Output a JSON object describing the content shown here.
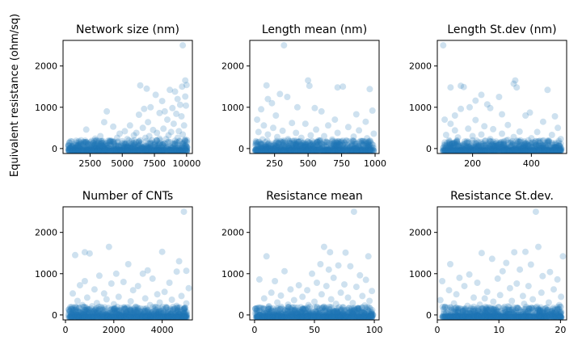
{
  "figure": {
    "ylabel": "Equivalent resistance (ohm/sq)"
  },
  "chart_data": [
    {
      "type": "scatter",
      "title": "Network size (nm)",
      "xlim": [
        400,
        10450
      ],
      "ylim": [
        -120,
        2620
      ],
      "xticks": [
        2500,
        5000,
        7500,
        10000
      ],
      "xticklabels": [
        "2500",
        "5000",
        "7500",
        "10000"
      ],
      "yticks": [
        0,
        1000,
        2000
      ],
      "yticklabels": [
        "0",
        "1000",
        "2000"
      ],
      "grid": false,
      "points": [
        [
          9700,
          2500
        ],
        [
          9900,
          1650
        ],
        [
          9650,
          1500
        ],
        [
          10000,
          1540
        ],
        [
          6400,
          1530
        ],
        [
          6900,
          1450
        ],
        [
          8700,
          1420
        ],
        [
          9100,
          1380
        ],
        [
          7600,
          1300
        ],
        [
          9900,
          1260
        ],
        [
          9300,
          1200
        ],
        [
          8100,
          1150
        ],
        [
          9500,
          1060
        ],
        [
          7200,
          1000
        ],
        [
          9950,
          1040
        ],
        [
          8900,
          980
        ],
        [
          6700,
          960
        ],
        [
          8300,
          900
        ],
        [
          3800,
          900
        ],
        [
          7900,
          860
        ],
        [
          9200,
          840
        ],
        [
          6300,
          820
        ],
        [
          9600,
          780
        ],
        [
          3600,
          640
        ],
        [
          7000,
          640
        ],
        [
          8500,
          700
        ],
        [
          5600,
          560
        ],
        [
          4300,
          530
        ],
        [
          9000,
          600
        ],
        [
          9800,
          560
        ],
        [
          6600,
          500
        ],
        [
          5200,
          420
        ],
        [
          7400,
          450
        ],
        [
          8200,
          480
        ],
        [
          2200,
          460
        ],
        [
          9400,
          420
        ],
        [
          6100,
          380
        ],
        [
          4800,
          360
        ],
        [
          7700,
          380
        ],
        [
          8800,
          400
        ],
        [
          3300,
          300
        ],
        [
          5900,
          320
        ],
        [
          9700,
          340
        ],
        [
          7100,
          300
        ],
        [
          8600,
          320
        ],
        [
          4600,
          260
        ],
        [
          6800,
          260
        ],
        [
          9300,
          260
        ],
        [
          5400,
          230
        ],
        [
          2900,
          240
        ],
        [
          7900,
          240
        ],
        [
          8400,
          230
        ],
        [
          9900,
          220
        ],
        [
          1800,
          200
        ],
        [
          6400,
          200
        ],
        [
          3900,
          190
        ],
        [
          7300,
          200
        ],
        [
          9100,
          190
        ],
        [
          5000,
          180
        ],
        [
          4100,
          170
        ]
      ]
    },
    {
      "type": "scatter",
      "title": "Length mean (nm)",
      "xlim": [
        65,
        1030
      ],
      "ylim": [
        -120,
        2620
      ],
      "xticks": [
        250,
        500,
        750,
        1000
      ],
      "xticklabels": [
        "250",
        "500",
        "750",
        "1000"
      ],
      "yticks": [
        0,
        1000,
        2000
      ],
      "yticklabels": [
        "0",
        "1000",
        "2000"
      ],
      "grid": false,
      "points": [
        [
          320,
          2500
        ],
        [
          500,
          1650
        ],
        [
          510,
          1520
        ],
        [
          190,
          1530
        ],
        [
          760,
          1500
        ],
        [
          720,
          1480
        ],
        [
          960,
          1440
        ],
        [
          290,
          1320
        ],
        [
          345,
          1250
        ],
        [
          200,
          1200
        ],
        [
          230,
          1100
        ],
        [
          420,
          1000
        ],
        [
          550,
          980
        ],
        [
          980,
          920
        ],
        [
          150,
          950
        ],
        [
          600,
          900
        ],
        [
          860,
          830
        ],
        [
          260,
          800
        ],
        [
          120,
          700
        ],
        [
          700,
          700
        ],
        [
          930,
          650
        ],
        [
          380,
          620
        ],
        [
          480,
          600
        ],
        [
          170,
          560
        ],
        [
          650,
          560
        ],
        [
          240,
          500
        ],
        [
          800,
          520
        ],
        [
          560,
          460
        ],
        [
          310,
          430
        ],
        [
          880,
          440
        ],
        [
          130,
          400
        ],
        [
          410,
          380
        ],
        [
          720,
          380
        ],
        [
          990,
          360
        ],
        [
          200,
          340
        ],
        [
          520,
          320
        ],
        [
          620,
          300
        ],
        [
          270,
          280
        ],
        [
          840,
          290
        ],
        [
          450,
          260
        ],
        [
          940,
          250
        ],
        [
          350,
          230
        ],
        [
          160,
          220
        ],
        [
          680,
          220
        ],
        [
          590,
          200
        ],
        [
          760,
          190
        ],
        [
          110,
          180
        ],
        [
          900,
          180
        ],
        [
          430,
          170
        ],
        [
          300,
          160
        ]
      ]
    },
    {
      "type": "scatter",
      "title": "Length St.dev (nm)",
      "xlim": [
        80,
        520
      ],
      "ylim": [
        -120,
        2620
      ],
      "xticks": [
        200,
        400
      ],
      "xticklabels": [
        "200",
        "400"
      ],
      "yticks": [
        0,
        1000,
        2000
      ],
      "yticklabels": [
        "0",
        "1000",
        "2000"
      ],
      "grid": false,
      "points": [
        [
          100,
          2500
        ],
        [
          345,
          1650
        ],
        [
          340,
          1570
        ],
        [
          350,
          1480
        ],
        [
          160,
          1520
        ],
        [
          170,
          1490
        ],
        [
          125,
          1480
        ],
        [
          455,
          1420
        ],
        [
          230,
          1300
        ],
        [
          290,
          1250
        ],
        [
          210,
          1160
        ],
        [
          250,
          1070
        ],
        [
          190,
          1000
        ],
        [
          260,
          980
        ],
        [
          160,
          960
        ],
        [
          395,
          870
        ],
        [
          300,
          830
        ],
        [
          140,
          800
        ],
        [
          480,
          780
        ],
        [
          380,
          800
        ],
        [
          105,
          700
        ],
        [
          210,
          690
        ],
        [
          440,
          650
        ],
        [
          125,
          600
        ],
        [
          320,
          570
        ],
        [
          240,
          540
        ],
        [
          490,
          500
        ],
        [
          185,
          480
        ],
        [
          270,
          470
        ],
        [
          140,
          440
        ],
        [
          360,
          410
        ],
        [
          420,
          400
        ],
        [
          300,
          360
        ],
        [
          230,
          340
        ],
        [
          110,
          330
        ],
        [
          470,
          330
        ],
        [
          200,
          300
        ],
        [
          340,
          280
        ],
        [
          150,
          270
        ],
        [
          400,
          250
        ],
        [
          260,
          230
        ],
        [
          500,
          230
        ],
        [
          120,
          200
        ],
        [
          320,
          210
        ],
        [
          180,
          180
        ],
        [
          430,
          190
        ],
        [
          280,
          170
        ],
        [
          360,
          160
        ],
        [
          220,
          150
        ],
        [
          460,
          160
        ]
      ]
    },
    {
      "type": "scatter",
      "title": "Number of CNTs",
      "xlim": [
        -100,
        5250
      ],
      "ylim": [
        -120,
        2620
      ],
      "xticks": [
        0,
        2000,
        4000
      ],
      "xticklabels": [
        "0",
        "2000",
        "4000"
      ],
      "yticks": [
        0,
        1000,
        2000
      ],
      "yticklabels": [
        "0",
        "1000",
        "2000"
      ],
      "grid": false,
      "points": [
        [
          4900,
          2500
        ],
        [
          1800,
          1650
        ],
        [
          800,
          1520
        ],
        [
          1000,
          1490
        ],
        [
          400,
          1450
        ],
        [
          4000,
          1530
        ],
        [
          4700,
          1300
        ],
        [
          2600,
          1230
        ],
        [
          3400,
          1080
        ],
        [
          5000,
          1070
        ],
        [
          4600,
          1050
        ],
        [
          2100,
          1000
        ],
        [
          3200,
          1000
        ],
        [
          1400,
          950
        ],
        [
          3600,
          880
        ],
        [
          800,
          820
        ],
        [
          2400,
          800
        ],
        [
          4300,
          780
        ],
        [
          1900,
          760
        ],
        [
          600,
          720
        ],
        [
          3000,
          700
        ],
        [
          5100,
          650
        ],
        [
          1200,
          620
        ],
        [
          2800,
          600
        ],
        [
          4100,
          560
        ],
        [
          300,
          520
        ],
        [
          1600,
          520
        ],
        [
          3800,
          500
        ],
        [
          4800,
          460
        ],
        [
          2200,
          440
        ],
        [
          900,
          420
        ],
        [
          3300,
          400
        ],
        [
          1700,
          380
        ],
        [
          4400,
          370
        ],
        [
          500,
          340
        ],
        [
          2700,
          330
        ],
        [
          3900,
          300
        ],
        [
          1300,
          290
        ],
        [
          5000,
          280
        ],
        [
          2000,
          260
        ],
        [
          700,
          240
        ],
        [
          3500,
          240
        ],
        [
          4600,
          220
        ],
        [
          1100,
          210
        ],
        [
          2900,
          200
        ],
        [
          200,
          190
        ],
        [
          4200,
          180
        ],
        [
          1500,
          170
        ],
        [
          3100,
          160
        ],
        [
          2500,
          150
        ]
      ]
    },
    {
      "type": "scatter",
      "title": "Resistance mean",
      "xlim": [
        -4,
        104
      ],
      "ylim": [
        -120,
        2620
      ],
      "xticks": [
        0,
        50,
        100
      ],
      "xticklabels": [
        "0",
        "50",
        "100"
      ],
      "yticks": [
        0,
        1000,
        2000
      ],
      "yticklabels": [
        "0",
        "1000",
        "2000"
      ],
      "grid": false,
      "points": [
        [
          83,
          2500
        ],
        [
          58,
          1650
        ],
        [
          63,
          1520
        ],
        [
          76,
          1510
        ],
        [
          10,
          1420
        ],
        [
          95,
          1420
        ],
        [
          55,
          1230
        ],
        [
          70,
          1200
        ],
        [
          80,
          1180
        ],
        [
          62,
          1100
        ],
        [
          25,
          1060
        ],
        [
          48,
          1000
        ],
        [
          88,
          960
        ],
        [
          4,
          860
        ],
        [
          66,
          900
        ],
        [
          93,
          850
        ],
        [
          17,
          820
        ],
        [
          52,
          780
        ],
        [
          75,
          740
        ],
        [
          37,
          720
        ],
        [
          60,
          700
        ],
        [
          85,
          680
        ],
        [
          30,
          620
        ],
        [
          44,
          600
        ],
        [
          98,
          580
        ],
        [
          14,
          540
        ],
        [
          72,
          540
        ],
        [
          56,
          500
        ],
        [
          22,
          470
        ],
        [
          90,
          460
        ],
        [
          40,
          440
        ],
        [
          78,
          420
        ],
        [
          8,
          400
        ],
        [
          64,
          380
        ],
        [
          33,
          360
        ],
        [
          96,
          340
        ],
        [
          50,
          320
        ],
        [
          19,
          300
        ],
        [
          82,
          290
        ],
        [
          68,
          270
        ],
        [
          28,
          250
        ],
        [
          45,
          240
        ],
        [
          92,
          230
        ],
        [
          12,
          210
        ],
        [
          58,
          200
        ],
        [
          74,
          190
        ],
        [
          36,
          180
        ],
        [
          86,
          170
        ],
        [
          2,
          160
        ],
        [
          54,
          150
        ]
      ]
    },
    {
      "type": "scatter",
      "title": "Resistance St.dev.",
      "xlim": [
        0,
        21
      ],
      "ylim": [
        -120,
        2620
      ],
      "xticks": [
        0,
        10,
        20
      ],
      "xticklabels": [
        "0",
        "10",
        "20"
      ],
      "yticks": [
        0,
        1000,
        2000
      ],
      "yticklabels": [
        "0",
        "1000",
        "2000"
      ],
      "grid": false,
      "points": [
        [
          16,
          2500
        ],
        [
          16.4,
          1650
        ],
        [
          14.3,
          1530
        ],
        [
          12.5,
          1520
        ],
        [
          7.2,
          1500
        ],
        [
          20.4,
          1420
        ],
        [
          8.9,
          1360
        ],
        [
          11.2,
          1260
        ],
        [
          2.1,
          1230
        ],
        [
          15.2,
          1220
        ],
        [
          13.4,
          1100
        ],
        [
          10.6,
          1060
        ],
        [
          18.3,
          1040
        ],
        [
          5.2,
          980
        ],
        [
          17.1,
          940
        ],
        [
          3.6,
          900
        ],
        [
          9.8,
          880
        ],
        [
          19.5,
          860
        ],
        [
          0.8,
          820
        ],
        [
          6.5,
          780
        ],
        [
          12.9,
          760
        ],
        [
          4.4,
          700
        ],
        [
          14.8,
          700
        ],
        [
          11.8,
          650
        ],
        [
          18.9,
          620
        ],
        [
          1.9,
          600
        ],
        [
          8.1,
          560
        ],
        [
          16.9,
          540
        ],
        [
          3.1,
          500
        ],
        [
          10.2,
          480
        ],
        [
          13.9,
          460
        ],
        [
          20.1,
          440
        ],
        [
          5.9,
          420
        ],
        [
          7.7,
          400
        ],
        [
          15.5,
          380
        ],
        [
          0.5,
          360
        ],
        [
          12.1,
          340
        ],
        [
          9.1,
          320
        ],
        [
          18.1,
          300
        ],
        [
          2.7,
          280
        ],
        [
          14.1,
          270
        ],
        [
          6.9,
          250
        ],
        [
          19.8,
          240
        ],
        [
          4.9,
          220
        ],
        [
          11.5,
          210
        ],
        [
          16.2,
          200
        ],
        [
          1.3,
          190
        ],
        [
          8.6,
          180
        ],
        [
          13.1,
          170
        ],
        [
          17.6,
          160
        ]
      ]
    }
  ]
}
